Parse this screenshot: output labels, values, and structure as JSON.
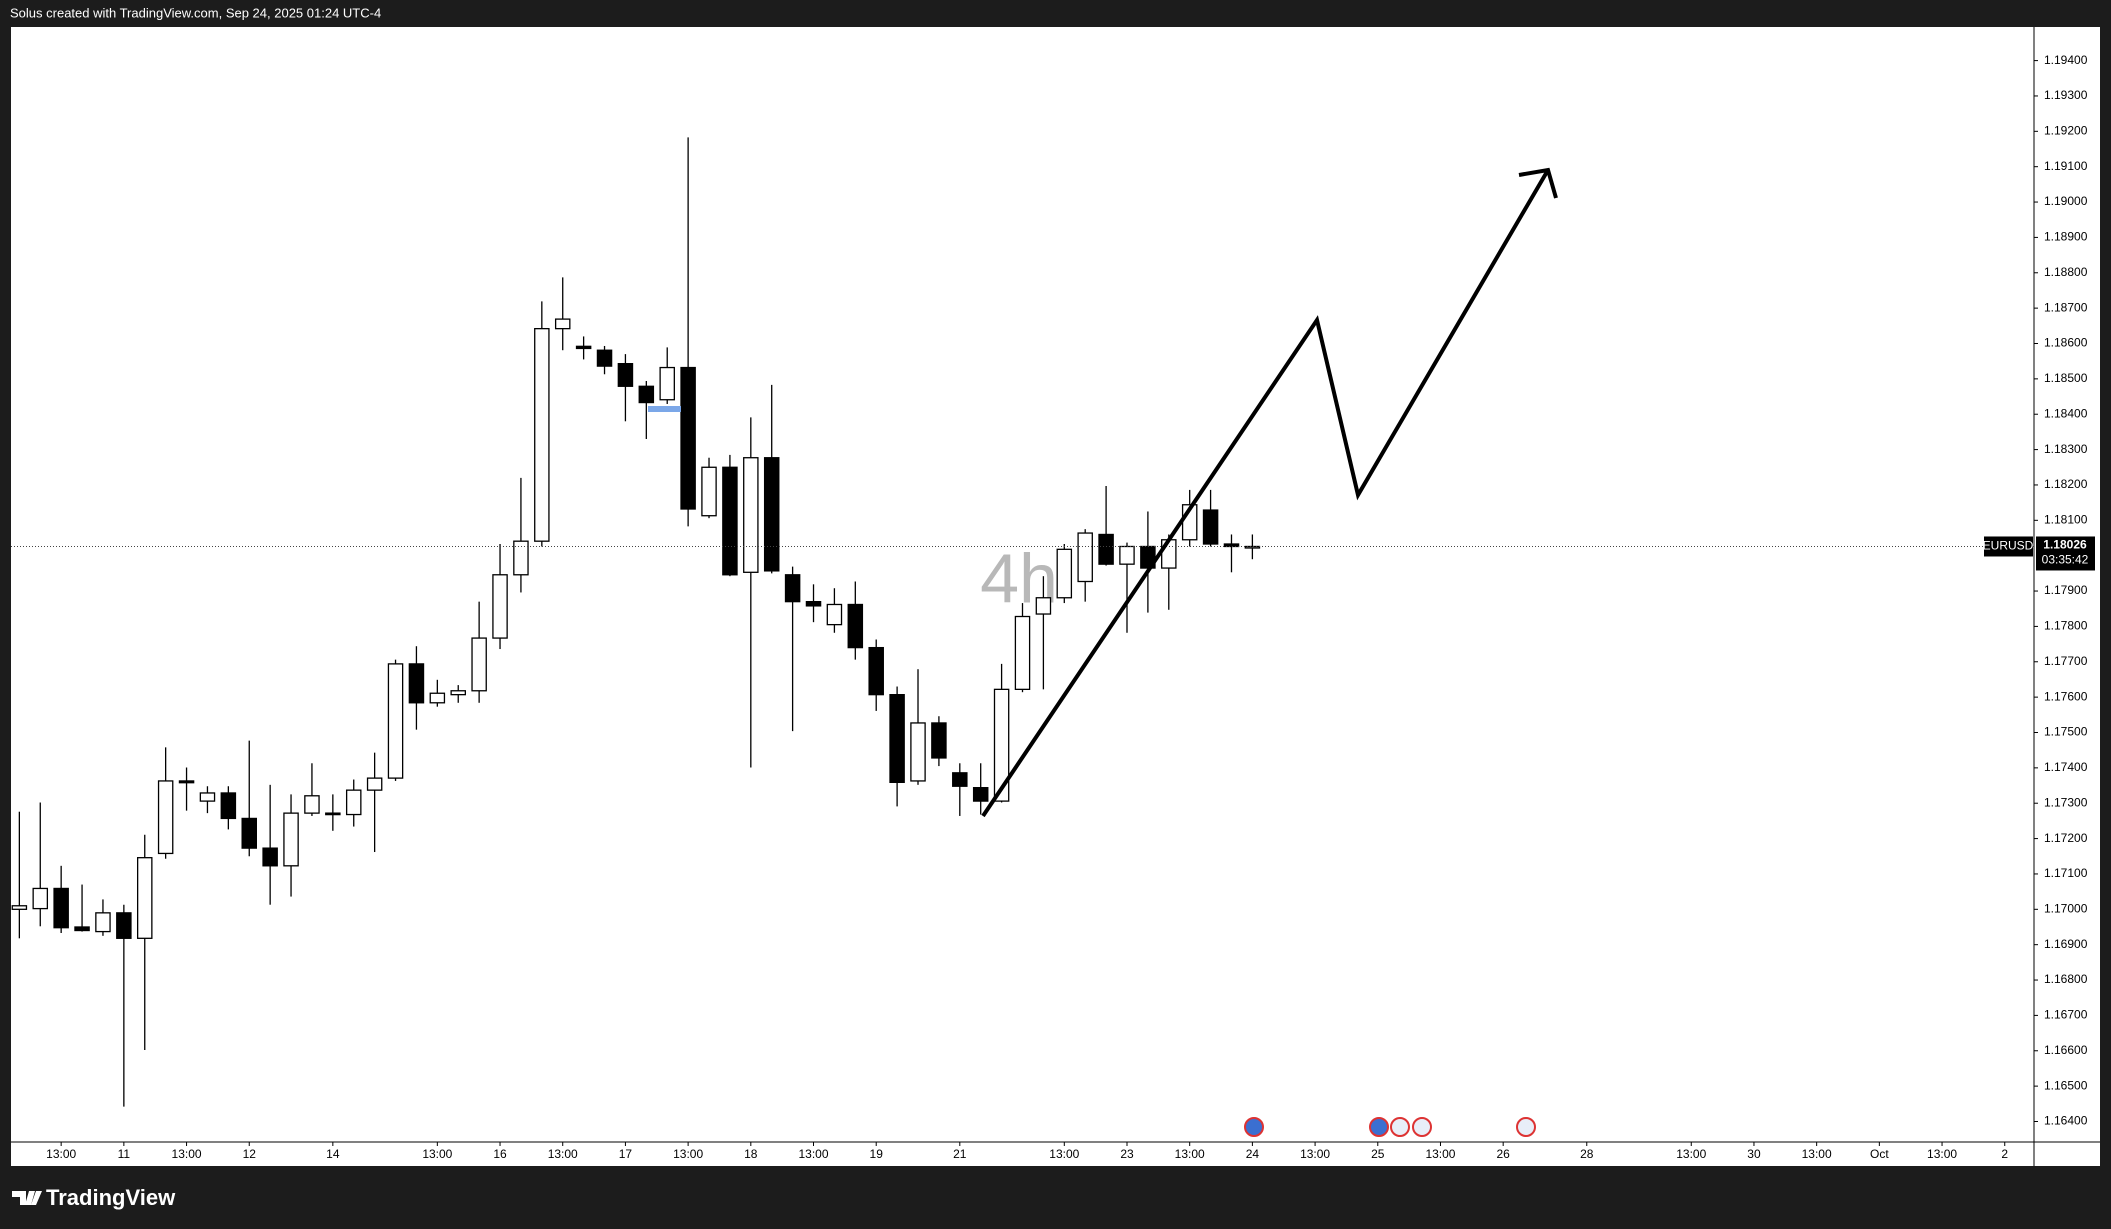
{
  "chart_data": {
    "type": "candlestick",
    "header": "Solus created with TradingView.com, Sep 24, 2025 01:24 UTC-4",
    "watermark": "4h",
    "symbol": "EURUSD",
    "current_price": 1.18026,
    "countdown": "03:35:42",
    "logo": "TradingView",
    "x": [
      0,
      1,
      2,
      3,
      4,
      5,
      6,
      7,
      8,
      9,
      10,
      11,
      12,
      13,
      14,
      15,
      16,
      17,
      18,
      19,
      20,
      21,
      22,
      23,
      24,
      25,
      26,
      27,
      28,
      29,
      30,
      31,
      32,
      33,
      34,
      35,
      36,
      37,
      38,
      39,
      40,
      41,
      42,
      43,
      44,
      45,
      46,
      47,
      48,
      49,
      50,
      51,
      52,
      53,
      54,
      55,
      56,
      57,
      58,
      59
    ],
    "open": [
      1.17,
      1.17002,
      1.17059,
      1.1695,
      1.16937,
      1.1699,
      1.16918,
      1.17158,
      1.17363,
      1.17306,
      1.17329,
      1.17257,
      1.17173,
      1.17123,
      1.17272,
      1.17272,
      1.17268,
      1.17337,
      1.17371,
      1.17694,
      1.17584,
      1.17607,
      1.17618,
      1.17767,
      1.17946,
      1.18041,
      1.18642,
      1.18592,
      1.18581,
      1.18543,
      1.18479,
      1.18441,
      1.18532,
      1.18113,
      1.1825,
      1.17953,
      1.18277,
      1.17946,
      1.1787,
      1.17805,
      1.17862,
      1.1774,
      1.17607,
      1.17363,
      1.17527,
      1.17386,
      1.17344,
      1.17306,
      1.17622,
      1.17835,
      1.17881,
      1.17927,
      1.1806,
      1.17976,
      1.18026,
      1.17965,
      1.18045,
      1.18129,
      1.18033,
      1.18026
    ],
    "high": [
      1.17276,
      1.17302,
      1.17123,
      1.1707,
      1.17028,
      1.17013,
      1.17211,
      1.17458,
      1.17401,
      1.17348,
      1.17348,
      1.17477,
      1.17352,
      1.17325,
      1.17413,
      1.17325,
      1.17367,
      1.17443,
      1.17706,
      1.17744,
      1.17649,
      1.17634,
      1.1787,
      1.18033,
      1.1822,
      1.18719,
      1.18787,
      1.1862,
      1.18593,
      1.1857,
      1.18494,
      1.18589,
      1.19183,
      1.18277,
      1.18285,
      1.18391,
      1.18483,
      1.17969,
      1.17919,
      1.17908,
      1.17927,
      1.17763,
      1.1763,
      1.17679,
      1.17546,
      1.17413,
      1.17413,
      1.17694,
      1.17866,
      1.17942,
      1.18033,
      1.18075,
      1.18197,
      1.18037,
      1.18125,
      1.1806,
      1.18186,
      1.18186,
      1.1806,
      1.1806
    ],
    "low": [
      1.16918,
      1.16952,
      1.16933,
      1.16937,
      1.16925,
      1.16442,
      1.16602,
      1.17143,
      1.17279,
      1.17272,
      1.17226,
      1.1715,
      1.17013,
      1.17036,
      1.17264,
      1.17222,
      1.17234,
      1.17162,
      1.17363,
      1.17508,
      1.17573,
      1.17584,
      1.17584,
      1.17736,
      1.17896,
      1.18026,
      1.18581,
      1.18555,
      1.18513,
      1.1838,
      1.1833,
      1.18429,
      1.18083,
      1.18106,
      1.17942,
      1.17401,
      1.1795,
      1.17504,
      1.17812,
      1.17782,
      1.17706,
      1.17561,
      1.17291,
      1.17352,
      1.17405,
      1.17264,
      1.17268,
      1.17302,
      1.17614,
      1.17622,
      1.17866,
      1.1787,
      1.17972,
      1.17782,
      1.17839,
      1.17847,
      1.18026,
      1.18026,
      1.17953,
      1.1799
    ],
    "close": [
      1.1701,
      1.17059,
      1.16948,
      1.1694,
      1.1699,
      1.16918,
      1.17146,
      1.17363,
      1.17358,
      1.17329,
      1.17257,
      1.17173,
      1.17123,
      1.17272,
      1.17321,
      1.17268,
      1.17337,
      1.17371,
      1.17694,
      1.17584,
      1.17611,
      1.17618,
      1.17767,
      1.17946,
      1.18041,
      1.18642,
      1.18669,
      1.18586,
      1.18536,
      1.18479,
      1.18433,
      1.18532,
      1.18132,
      1.1825,
      1.17946,
      1.18277,
      1.17957,
      1.1787,
      1.17858,
      1.17862,
      1.1774,
      1.17607,
      1.17359,
      1.17527,
      1.17428,
      1.17348,
      1.17306,
      1.17622,
      1.17828,
      1.17881,
      1.18018,
      1.18064,
      1.17976,
      1.18026,
      1.17965,
      1.18045,
      1.18144,
      1.18033,
      1.18026,
      1.18026
    ],
    "up_color": "#ffffff",
    "down_color": "#000000",
    "xlim": [
      -0.4,
      96.4
    ],
    "xticks": [
      {
        "value": 2,
        "label": "13:00"
      },
      {
        "value": 5,
        "label": "11"
      },
      {
        "value": 8,
        "label": "13:00"
      },
      {
        "value": 11,
        "label": "12"
      },
      {
        "value": 15,
        "label": "14"
      },
      {
        "value": 20,
        "label": "13:00"
      },
      {
        "value": 23,
        "label": "16"
      },
      {
        "value": 26,
        "label": "13:00"
      },
      {
        "value": 29,
        "label": "17"
      },
      {
        "value": 32,
        "label": "13:00"
      },
      {
        "value": 35,
        "label": "18"
      },
      {
        "value": 38,
        "label": "13:00"
      },
      {
        "value": 41,
        "label": "19"
      },
      {
        "value": 45,
        "label": "21"
      },
      {
        "value": 50,
        "label": "13:00"
      },
      {
        "value": 53,
        "label": "23"
      },
      {
        "value": 56,
        "label": "13:00"
      },
      {
        "value": 59,
        "label": "24"
      },
      {
        "value": 62,
        "label": "13:00"
      },
      {
        "value": 65,
        "label": "25"
      },
      {
        "value": 68,
        "label": "13:00"
      },
      {
        "value": 71,
        "label": "26"
      },
      {
        "value": 75,
        "label": "28"
      },
      {
        "value": 80,
        "label": "13:00"
      },
      {
        "value": 83,
        "label": "30"
      },
      {
        "value": 86,
        "label": "13:00"
      },
      {
        "value": 89,
        "label": "Oct"
      },
      {
        "value": 92,
        "label": "13:00"
      },
      {
        "value": 95,
        "label": "2"
      }
    ],
    "ylim": [
      1.16342,
      1.19495
    ],
    "yticks": [
      {
        "value": 1.164,
        "label": "1.16400"
      },
      {
        "value": 1.165,
        "label": "1.16500"
      },
      {
        "value": 1.166,
        "label": "1.16600"
      },
      {
        "value": 1.167,
        "label": "1.16700"
      },
      {
        "value": 1.168,
        "label": "1.16800"
      },
      {
        "value": 1.169,
        "label": "1.16900"
      },
      {
        "value": 1.17,
        "label": "1.17000"
      },
      {
        "value": 1.171,
        "label": "1.17100"
      },
      {
        "value": 1.172,
        "label": "1.17200"
      },
      {
        "value": 1.173,
        "label": "1.17300"
      },
      {
        "value": 1.174,
        "label": "1.17400"
      },
      {
        "value": 1.175,
        "label": "1.17500"
      },
      {
        "value": 1.176,
        "label": "1.17600"
      },
      {
        "value": 1.177,
        "label": "1.17700"
      },
      {
        "value": 1.178,
        "label": "1.17800"
      },
      {
        "value": 1.179,
        "label": "1.17900"
      },
      {
        "value": 1.181,
        "label": "1.18100"
      },
      {
        "value": 1.182,
        "label": "1.18200"
      },
      {
        "value": 1.183,
        "label": "1.18300"
      },
      {
        "value": 1.184,
        "label": "1.18400"
      },
      {
        "value": 1.185,
        "label": "1.18500"
      },
      {
        "value": 1.186,
        "label": "1.18600"
      },
      {
        "value": 1.187,
        "label": "1.18700"
      },
      {
        "value": 1.188,
        "label": "1.18800"
      },
      {
        "value": 1.189,
        "label": "1.18900"
      },
      {
        "value": 1.19,
        "label": "1.19000"
      },
      {
        "value": 1.191,
        "label": "1.19100"
      },
      {
        "value": 1.192,
        "label": "1.19200"
      },
      {
        "value": 1.193,
        "label": "1.19300"
      },
      {
        "value": 1.194,
        "label": "1.19400"
      }
    ]
  }
}
